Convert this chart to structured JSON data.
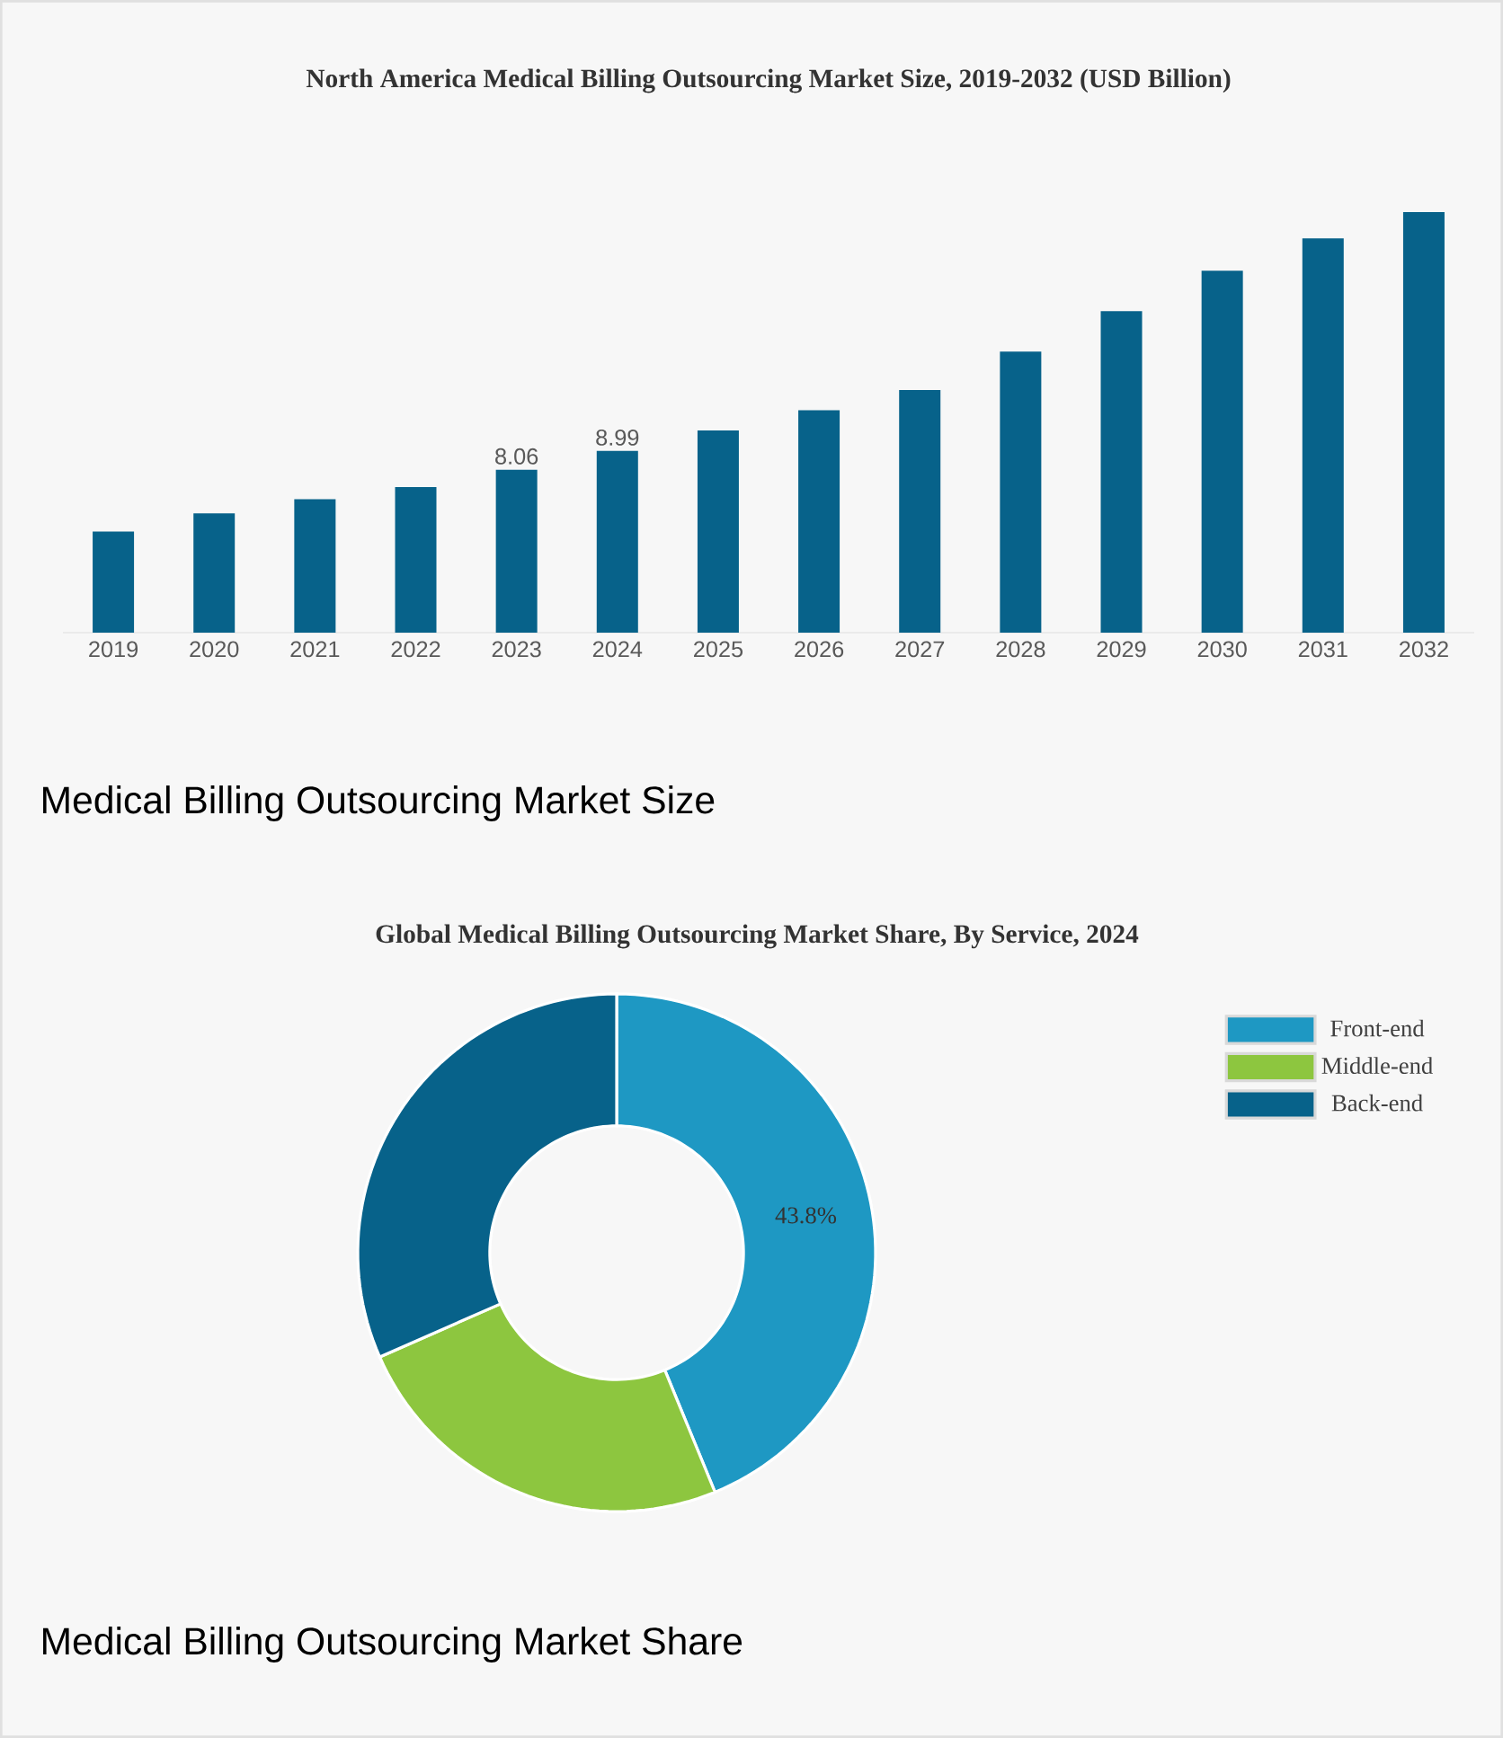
{
  "chart_data": [
    {
      "type": "bar",
      "title": "North America Medical Billing Outsourcing Market Size, 2019-2032 (USD Billion)",
      "categories": [
        "2019",
        "2020",
        "2021",
        "2022",
        "2023",
        "2024",
        "2025",
        "2026",
        "2027",
        "2028",
        "2029",
        "2030",
        "2031",
        "2032"
      ],
      "values": [
        5.0,
        5.9,
        6.6,
        7.2,
        8.06,
        8.99,
        10.0,
        11.0,
        12.0,
        13.9,
        15.9,
        17.9,
        19.5,
        20.8
      ],
      "value_labels": [
        null,
        null,
        null,
        null,
        "8.06",
        "8.99",
        null,
        null,
        null,
        null,
        null,
        null,
        null,
        null
      ],
      "color": "#07628a",
      "tick_labels": "x",
      "annotations": [
        "Medical Billing Outsourcing Market Size"
      ]
    },
    {
      "type": "donut",
      "title": "Global Medical Billing Outsourcing Market Share, By Service, 2024",
      "categories": [
        "Front-end",
        "Middle-end",
        "Back-end"
      ],
      "values": [
        43.8,
        24.6,
        31.6
      ],
      "colors": [
        "#1e98c3",
        "#8dc63f",
        "#07628a"
      ],
      "value_labels": [
        "43.8%",
        null,
        null
      ],
      "legend": "top right",
      "annotations": [
        "Medical Billing Outsourcing Market Share"
      ]
    }
  ]
}
